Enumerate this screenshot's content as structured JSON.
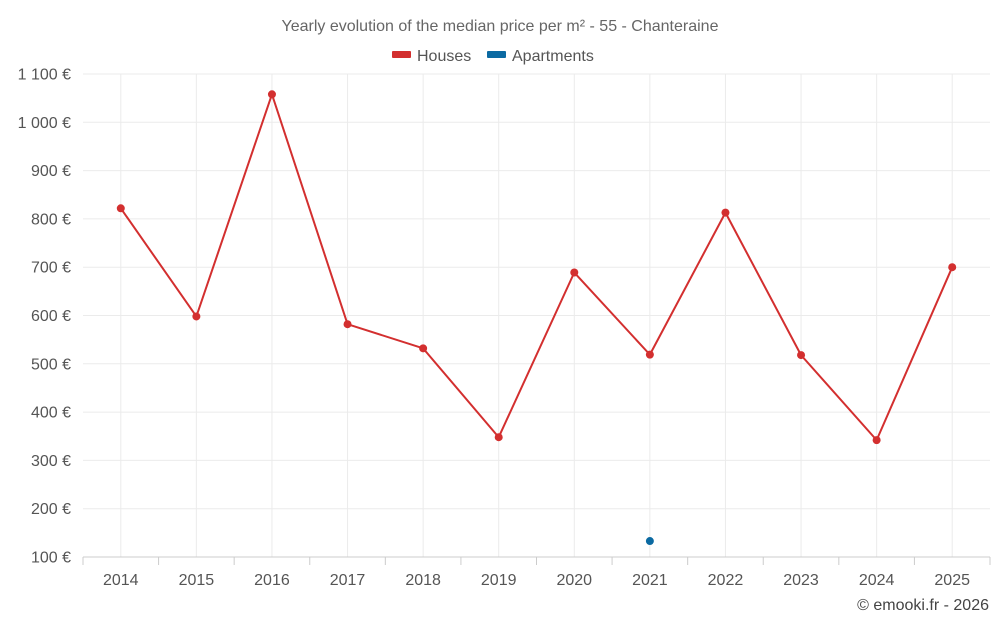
{
  "chart_data": {
    "type": "line",
    "title": "Yearly evolution of the median price per m² - 55 - Chanteraine",
    "categories": [
      "2014",
      "2015",
      "2016",
      "2017",
      "2018",
      "2019",
      "2020",
      "2021",
      "2022",
      "2023",
      "2024",
      "2025"
    ],
    "series": [
      {
        "name": "Houses",
        "color": "#d32f2f",
        "values": [
          822,
          598,
          1058,
          582,
          532,
          348,
          689,
          519,
          813,
          518,
          342,
          700
        ]
      },
      {
        "name": "Apartments",
        "color": "#0b6aa2",
        "values": [
          null,
          null,
          null,
          null,
          null,
          null,
          null,
          133,
          null,
          null,
          null,
          null
        ]
      }
    ],
    "yticks": [
      100,
      200,
      300,
      400,
      500,
      600,
      700,
      800,
      900,
      1000,
      1100
    ],
    "ytick_labels": [
      "100 €",
      "200 €",
      "300 €",
      "400 €",
      "500 €",
      "600 €",
      "700 €",
      "800 €",
      "900 €",
      "1 000 €",
      "1 100 €"
    ],
    "ylim": [
      100,
      1100
    ],
    "grid": true,
    "legend_position": "top-center",
    "credit": "© emooki.fr - 2026"
  }
}
